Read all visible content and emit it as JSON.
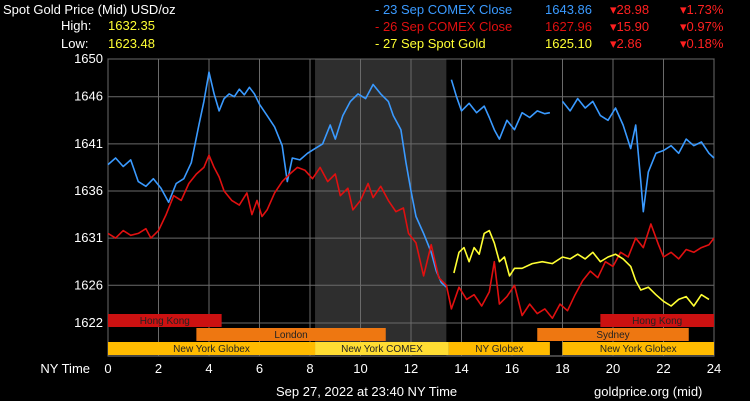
{
  "header": {
    "title": "Spot Gold Price (Mid) USD/oz",
    "high_label": "High:",
    "high_value": "1632.35",
    "low_label": "Low:",
    "low_value": "1623.48"
  },
  "legend": [
    {
      "label": "- 23 Sep COMEX Close",
      "price": "1643.86",
      "change": "▾28.98",
      "pct": "▾1.73%",
      "color": "#3a9aff"
    },
    {
      "label": "- 26 Sep COMEX Close",
      "price": "1627.96",
      "change": "▾15.90",
      "pct": "▾0.97%",
      "color": "#e01010"
    },
    {
      "label": "- 27 Sep Spot Gold",
      "price": "1625.10",
      "change": "▾2.86",
      "pct": "▾0.18%",
      "color": "#ffff33"
    }
  ],
  "footer": {
    "timestamp": "Sep 27, 2022 at 23:40 NY Time",
    "source": "goldprice.org (mid)"
  },
  "chart_data": {
    "type": "line",
    "xlabel": "NY Time",
    "ylabel": "",
    "x_ticks": [
      "0",
      "2",
      "4",
      "6",
      "8",
      "10",
      "12",
      "14",
      "16",
      "18",
      "20",
      "22",
      "24"
    ],
    "y_ticks": [
      "1650",
      "1646",
      "1641",
      "1636",
      "1631",
      "1626",
      "1622"
    ],
    "xlim": [
      0,
      24
    ],
    "ylim": [
      1618.5,
      1650
    ],
    "grid": true,
    "shaded_region": [
      8.2,
      13.4
    ],
    "sessions": [
      {
        "name": "Hong Kong",
        "row": 1,
        "start": 0,
        "end": 4.5,
        "color": "#cc1111"
      },
      {
        "name": "Hong Kong",
        "row": 1,
        "start": 19.5,
        "end": 24,
        "color": "#cc1111"
      },
      {
        "name": "London",
        "row": 2,
        "start": 3.5,
        "end": 11.0,
        "color": "#ee7711"
      },
      {
        "name": "Sydney",
        "row": 2,
        "start": 17.0,
        "end": 23.0,
        "color": "#ee7711"
      },
      {
        "name": "New York Globex",
        "row": 3,
        "start": 0,
        "end": 8.2,
        "color": "#ffbb00"
      },
      {
        "name": "New York COMEX",
        "row": 3,
        "start": 8.2,
        "end": 13.5,
        "color": "#ffdd33"
      },
      {
        "name": "NY Globex",
        "row": 3,
        "start": 13.5,
        "end": 17.5,
        "color": "#ffbb00"
      },
      {
        "name": "New York Globex",
        "row": 3,
        "start": 18.0,
        "end": 24,
        "color": "#ffbb00"
      }
    ],
    "series": [
      {
        "color": "#3a9aff",
        "segments": [
          [
            [
              0,
              1638.8
            ],
            [
              0.3,
              1639.5
            ],
            [
              0.6,
              1638.6
            ],
            [
              0.9,
              1639.3
            ],
            [
              1.2,
              1637.0
            ],
            [
              1.5,
              1636.5
            ],
            [
              1.8,
              1637.3
            ],
            [
              2.1,
              1636.3
            ],
            [
              2.4,
              1634.8
            ],
            [
              2.7,
              1636.8
            ],
            [
              3.0,
              1637.3
            ],
            [
              3.3,
              1639.0
            ],
            [
              3.6,
              1643.0
            ],
            [
              3.8,
              1645.5
            ],
            [
              4.0,
              1648.6
            ],
            [
              4.2,
              1646.3
            ],
            [
              4.4,
              1644.5
            ],
            [
              4.6,
              1645.8
            ],
            [
              4.8,
              1646.3
            ],
            [
              5.0,
              1646.0
            ],
            [
              5.2,
              1646.8
            ],
            [
              5.4,
              1646.2
            ],
            [
              5.6,
              1647.0
            ],
            [
              5.8,
              1646.3
            ],
            [
              6.0,
              1645.2
            ],
            [
              6.3,
              1644.0
            ],
            [
              6.6,
              1642.8
            ],
            [
              6.9,
              1640.8
            ],
            [
              7.1,
              1637.0
            ],
            [
              7.3,
              1639.5
            ],
            [
              7.6,
              1639.3
            ],
            [
              7.9,
              1640.0
            ],
            [
              8.2,
              1640.5
            ],
            [
              8.5,
              1641.0
            ],
            [
              8.8,
              1643.0
            ],
            [
              9.0,
              1641.5
            ],
            [
              9.3,
              1644.0
            ],
            [
              9.6,
              1645.5
            ],
            [
              9.9,
              1646.3
            ],
            [
              10.2,
              1645.8
            ],
            [
              10.5,
              1647.3
            ],
            [
              10.8,
              1646.3
            ],
            [
              11.1,
              1645.5
            ],
            [
              11.3,
              1644.0
            ],
            [
              11.6,
              1642.5
            ],
            [
              11.8,
              1639.0
            ],
            [
              12.0,
              1636.0
            ],
            [
              12.2,
              1633.3
            ],
            [
              12.5,
              1631.5
            ],
            [
              12.8,
              1629.5
            ],
            [
              13.0,
              1627.5
            ],
            [
              13.2,
              1626.3
            ],
            [
              13.4,
              1625.8
            ]
          ],
          [
            [
              13.6,
              1647.8
            ],
            [
              13.8,
              1646.0
            ],
            [
              14.0,
              1644.5
            ],
            [
              14.3,
              1645.3
            ],
            [
              14.6,
              1644.3
            ],
            [
              14.9,
              1645.0
            ],
            [
              15.1,
              1643.8
            ],
            [
              15.3,
              1642.5
            ],
            [
              15.5,
              1641.5
            ],
            [
              15.8,
              1643.5
            ],
            [
              16.1,
              1642.5
            ],
            [
              16.4,
              1644.3
            ],
            [
              16.7,
              1643.8
            ],
            [
              17.0,
              1644.5
            ],
            [
              17.3,
              1644.2
            ],
            [
              17.5,
              1644.3
            ]
          ],
          [
            [
              18.0,
              1645.5
            ],
            [
              18.3,
              1644.5
            ],
            [
              18.6,
              1645.8
            ],
            [
              18.9,
              1644.8
            ],
            [
              19.2,
              1645.5
            ],
            [
              19.5,
              1644.0
            ],
            [
              19.8,
              1643.5
            ],
            [
              20.1,
              1644.8
            ],
            [
              20.4,
              1643.0
            ],
            [
              20.7,
              1640.5
            ],
            [
              20.9,
              1643.0
            ],
            [
              21.1,
              1637.0
            ],
            [
              21.2,
              1633.8
            ],
            [
              21.4,
              1638.0
            ],
            [
              21.7,
              1640.0
            ],
            [
              22.0,
              1640.3
            ],
            [
              22.3,
              1640.8
            ],
            [
              22.6,
              1640.0
            ],
            [
              22.9,
              1641.5
            ],
            [
              23.2,
              1640.8
            ],
            [
              23.5,
              1641.2
            ],
            [
              23.8,
              1640.0
            ],
            [
              24.0,
              1639.5
            ]
          ]
        ]
      },
      {
        "color": "#e01010",
        "segments": [
          [
            [
              0,
              1631.5
            ],
            [
              0.3,
              1631.0
            ],
            [
              0.6,
              1631.8
            ],
            [
              0.9,
              1631.3
            ],
            [
              1.2,
              1631.5
            ],
            [
              1.5,
              1632.0
            ],
            [
              1.7,
              1631.0
            ],
            [
              2.0,
              1631.8
            ],
            [
              2.3,
              1633.5
            ],
            [
              2.6,
              1635.5
            ],
            [
              2.9,
              1635.0
            ],
            [
              3.2,
              1636.8
            ],
            [
              3.5,
              1637.8
            ],
            [
              3.8,
              1638.5
            ],
            [
              4.0,
              1639.8
            ],
            [
              4.2,
              1638.5
            ],
            [
              4.4,
              1637.5
            ],
            [
              4.6,
              1636.0
            ],
            [
              4.9,
              1635.0
            ],
            [
              5.2,
              1634.5
            ],
            [
              5.5,
              1635.8
            ],
            [
              5.7,
              1633.5
            ],
            [
              5.9,
              1635.0
            ],
            [
              6.1,
              1633.3
            ],
            [
              6.3,
              1634.0
            ],
            [
              6.6,
              1635.8
            ],
            [
              6.9,
              1637.0
            ],
            [
              7.2,
              1637.8
            ],
            [
              7.5,
              1638.5
            ],
            [
              7.8,
              1638.2
            ],
            [
              8.1,
              1637.3
            ],
            [
              8.4,
              1638.5
            ],
            [
              8.7,
              1637.0
            ],
            [
              9.0,
              1637.8
            ],
            [
              9.2,
              1635.5
            ],
            [
              9.5,
              1636.3
            ],
            [
              9.7,
              1634.0
            ],
            [
              10.0,
              1635.0
            ],
            [
              10.3,
              1636.8
            ],
            [
              10.5,
              1635.3
            ],
            [
              10.8,
              1636.5
            ],
            [
              11.1,
              1635.0
            ],
            [
              11.4,
              1633.8
            ],
            [
              11.7,
              1634.2
            ],
            [
              11.9,
              1631.5
            ],
            [
              12.2,
              1630.5
            ],
            [
              12.5,
              1627.0
            ],
            [
              12.8,
              1630.3
            ],
            [
              13.1,
              1626.8
            ],
            [
              13.4,
              1626.0
            ],
            [
              13.6,
              1623.5
            ],
            [
              13.9,
              1625.8
            ],
            [
              14.2,
              1624.5
            ],
            [
              14.5,
              1625.0
            ],
            [
              14.8,
              1623.8
            ],
            [
              15.1,
              1625.3
            ],
            [
              15.3,
              1628.5
            ],
            [
              15.5,
              1624.0
            ],
            [
              15.8,
              1624.8
            ],
            [
              16.1,
              1626.0
            ],
            [
              16.4,
              1622.8
            ],
            [
              16.7,
              1624.0
            ],
            [
              17.0,
              1623.0
            ],
            [
              17.3,
              1623.5
            ],
            [
              17.6,
              1622.5
            ],
            [
              17.9,
              1624.0
            ],
            [
              18.2,
              1623.3
            ],
            [
              18.5,
              1625.0
            ],
            [
              18.8,
              1626.5
            ],
            [
              19.1,
              1627.5
            ],
            [
              19.4,
              1626.8
            ],
            [
              19.7,
              1628.5
            ],
            [
              20.0,
              1628.0
            ],
            [
              20.3,
              1629.5
            ],
            [
              20.6,
              1629.0
            ],
            [
              20.9,
              1631.0
            ],
            [
              21.2,
              1630.0
            ],
            [
              21.5,
              1632.5
            ],
            [
              21.8,
              1630.3
            ],
            [
              22.0,
              1629.0
            ],
            [
              22.3,
              1629.5
            ],
            [
              22.6,
              1628.8
            ],
            [
              22.9,
              1629.8
            ],
            [
              23.2,
              1629.5
            ],
            [
              23.5,
              1630.0
            ],
            [
              23.8,
              1630.3
            ],
            [
              24.0,
              1631.0
            ]
          ]
        ]
      },
      {
        "color": "#ffff33",
        "segments": [
          [
            [
              13.7,
              1627.3
            ],
            [
              13.9,
              1629.5
            ],
            [
              14.1,
              1630.0
            ],
            [
              14.3,
              1628.5
            ],
            [
              14.5,
              1630.0
            ],
            [
              14.7,
              1629.3
            ],
            [
              14.9,
              1631.5
            ],
            [
              15.1,
              1631.8
            ],
            [
              15.3,
              1630.5
            ],
            [
              15.5,
              1628.5
            ],
            [
              15.7,
              1629.0
            ],
            [
              15.9,
              1627.0
            ],
            [
              16.1,
              1627.8
            ],
            [
              16.4,
              1627.8
            ],
            [
              16.8,
              1628.3
            ],
            [
              17.2,
              1628.5
            ],
            [
              17.6,
              1628.3
            ],
            [
              18.0,
              1629.0
            ],
            [
              18.3,
              1628.8
            ],
            [
              18.6,
              1629.3
            ],
            [
              18.9,
              1628.8
            ],
            [
              19.2,
              1629.5
            ],
            [
              19.5,
              1628.5
            ],
            [
              19.8,
              1629.0
            ],
            [
              20.1,
              1629.3
            ],
            [
              20.4,
              1628.8
            ],
            [
              20.7,
              1628.0
            ],
            [
              20.9,
              1626.5
            ],
            [
              21.1,
              1625.5
            ],
            [
              21.4,
              1625.8
            ],
            [
              21.7,
              1625.0
            ],
            [
              22.0,
              1624.3
            ],
            [
              22.3,
              1623.8
            ],
            [
              22.6,
              1624.5
            ],
            [
              22.9,
              1624.8
            ],
            [
              23.2,
              1623.8
            ],
            [
              23.5,
              1625.0
            ],
            [
              23.8,
              1624.5
            ]
          ]
        ]
      }
    ]
  }
}
